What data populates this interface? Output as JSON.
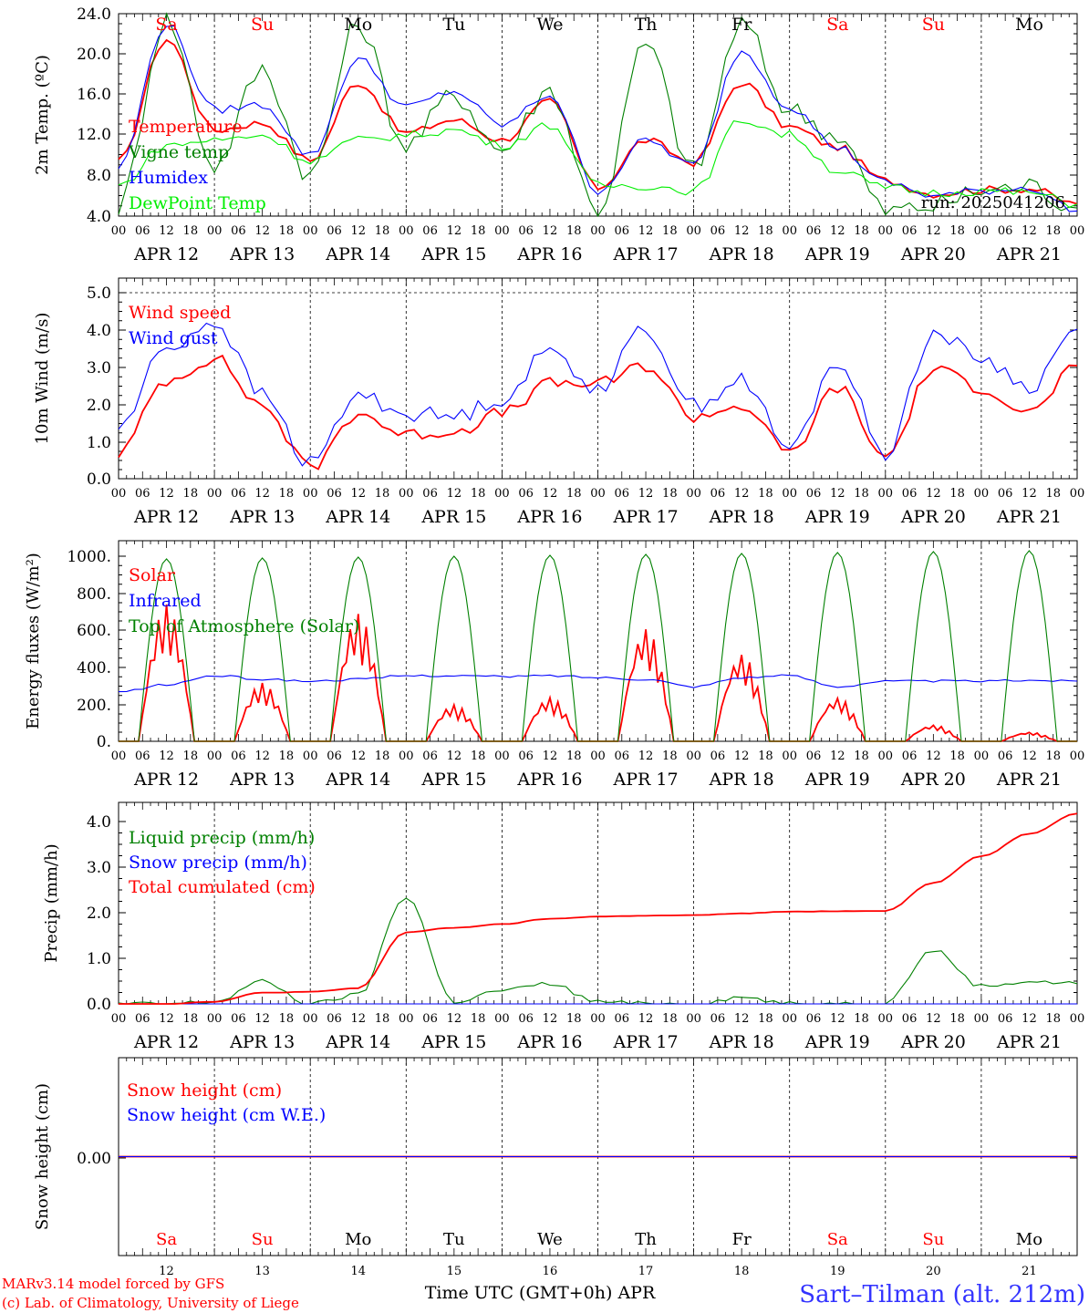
{
  "days": [
    "APR 12",
    "APR 13",
    "APR 14",
    "APR 15",
    "APR 16",
    "APR 17",
    "APR 18",
    "APR 19",
    "APR 20",
    "APR 21"
  ],
  "weekdays": [
    "Sa",
    "Su",
    "Mo",
    "Tu",
    "We",
    "Th",
    "Fr",
    "Sa",
    "Su",
    "Mo"
  ],
  "weekend_color": "#ff0000",
  "weekday_color": "#000000",
  "hour_ticks": [
    "00",
    "06",
    "12",
    "18"
  ],
  "bottom_day_numbers": [
    "12",
    "13",
    "14",
    "15",
    "16",
    "17",
    "18",
    "19",
    "20",
    "21"
  ],
  "footer": {
    "model": "MARv3.14 model forced by GFS",
    "copyright": "(c) Lab. of Climatology, University of Liege",
    "xaxis": "Time UTC (GMT+0h) APR",
    "station": "Sart–Tilman (alt. 212m)"
  },
  "colors": {
    "red": "#ff0000",
    "green": "#008000",
    "blue": "#0000ff",
    "lime": "#00ee00",
    "station": "#3333ff"
  },
  "chart_data": [
    {
      "type": "line",
      "ylabel": "2m Temp. (ºC)",
      "yticks": [
        "24.0",
        "20.0",
        "16.0",
        "12.0",
        "8.0",
        "4.0"
      ],
      "ylim": [
        4,
        24
      ],
      "x": [
        0,
        12,
        24,
        36,
        48,
        60,
        72,
        84,
        96,
        108,
        120,
        132,
        144,
        156,
        168,
        180,
        192,
        204,
        216,
        228,
        240
      ],
      "annotation": "run: 2025041206",
      "series": [
        {
          "name": "Temperature",
          "color": "red",
          "values": [
            9.3,
            21.5,
            12.5,
            13.2,
            9.5,
            17.2,
            12.2,
            13.5,
            11.5,
            15.3,
            6.8,
            11.5,
            9.3,
            17.2,
            12.8,
            10.8,
            7.5,
            6.2,
            6.6,
            6.7,
            5.2
          ]
        },
        {
          "name": "Vigne temp",
          "color": "green",
          "values": [
            5.0,
            23.5,
            9.0,
            18.5,
            8.0,
            23.0,
            11.0,
            16.0,
            10.5,
            16.5,
            4.5,
            21.0,
            8.5,
            23.0,
            14.5,
            12.0,
            4.5,
            5.0,
            6.5,
            7.0,
            4.8
          ]
        },
        {
          "name": "Humidex",
          "color": "blue",
          "values": [
            8.8,
            23.0,
            14.5,
            15.0,
            10.0,
            19.5,
            14.8,
            16.3,
            13.0,
            16.0,
            6.5,
            11.5,
            9.0,
            20.3,
            14.8,
            10.8,
            7.3,
            6.0,
            6.5,
            6.8,
            4.5
          ]
        },
        {
          "name": "DewPoint Temp",
          "color": "lime",
          "values": [
            7.0,
            11.0,
            11.5,
            12.0,
            9.5,
            11.5,
            12.0,
            12.5,
            11.0,
            13.0,
            7.0,
            7.0,
            6.5,
            13.5,
            12.0,
            8.5,
            6.8,
            6.3,
            6.5,
            6.3,
            5.2
          ]
        }
      ]
    },
    {
      "type": "line",
      "ylabel": "10m Wind (m/s)",
      "yticks": [
        "5.0",
        "4.0",
        "3.0",
        "2.0",
        "1.0",
        "0.0"
      ],
      "ylim": [
        0,
        5.5
      ],
      "x": [
        0,
        12,
        24,
        36,
        48,
        60,
        72,
        84,
        96,
        108,
        120,
        132,
        144,
        156,
        168,
        180,
        192,
        204,
        216,
        228,
        240
      ],
      "series": [
        {
          "name": "Wind speed",
          "color": "red",
          "values": [
            0.7,
            2.7,
            3.3,
            2.0,
            0.3,
            1.8,
            1.2,
            1.3,
            1.8,
            2.6,
            2.6,
            3.1,
            1.7,
            2.0,
            0.7,
            2.5,
            0.6,
            3.0,
            2.5,
            1.8,
            3.1
          ]
        },
        {
          "name": "Wind gust",
          "color": "blue",
          "values": [
            1.4,
            3.6,
            4.3,
            2.3,
            0.4,
            2.3,
            1.8,
            1.7,
            2.2,
            3.5,
            2.5,
            4.1,
            2.0,
            2.7,
            0.8,
            3.2,
            0.7,
            4.0,
            3.3,
            2.5,
            4.1
          ]
        }
      ]
    },
    {
      "type": "line",
      "ylabel": "Energy fluxes (W/m²)",
      "yticks": [
        "1000.",
        "800.",
        "600.",
        "400.",
        "200.",
        "0."
      ],
      "ylim": [
        0,
        1100
      ],
      "x": [
        0,
        12,
        24,
        36,
        48,
        60,
        72,
        84,
        96,
        108,
        120,
        132,
        144,
        156,
        168,
        180,
        192,
        204,
        216,
        228,
        240
      ],
      "series": [
        {
          "name": "Solar",
          "color": "red",
          "values": [
            0,
            750,
            0,
            320,
            0,
            700,
            0,
            200,
            0,
            240,
            0,
            620,
            0,
            480,
            0,
            240,
            0,
            90,
            0,
            50,
            0
          ]
        },
        {
          "name": "Infrared",
          "color": "blue",
          "values": [
            270,
            310,
            360,
            340,
            330,
            340,
            360,
            360,
            355,
            360,
            350,
            340,
            300,
            350,
            360,
            300,
            330,
            330,
            330,
            335,
            330
          ]
        },
        {
          "name": "Top of Atmosphere (Solar)",
          "color": "green",
          "values": [
            0,
            1000,
            0,
            1005,
            0,
            1010,
            0,
            1015,
            0,
            1020,
            0,
            1025,
            0,
            1030,
            0,
            1035,
            0,
            1040,
            0,
            1045,
            0
          ]
        }
      ]
    },
    {
      "type": "line",
      "ylabel": "Precip (mm/h)",
      "yticks": [
        "4.0",
        "3.0",
        "2.0",
        "1.0",
        "0.0"
      ],
      "ylim": [
        0,
        4.5
      ],
      "x": [
        0,
        12,
        24,
        36,
        48,
        60,
        72,
        84,
        96,
        108,
        120,
        132,
        144,
        156,
        168,
        180,
        192,
        204,
        216,
        228,
        240
      ],
      "series": [
        {
          "name": "Liquid precip (mm/h)",
          "color": "green",
          "values": [
            0,
            0,
            0.05,
            0.5,
            0,
            0.2,
            2.4,
            0.05,
            0.3,
            0.45,
            0.05,
            0,
            0,
            0.15,
            0,
            0,
            0.05,
            1.2,
            0.4,
            0.5,
            0.45
          ]
        },
        {
          "name": "Snow precip (mm/h)",
          "color": "blue",
          "values": [
            0,
            0,
            0,
            0,
            0,
            0,
            0,
            0,
            0,
            0,
            0,
            0,
            0,
            0,
            0,
            0,
            0,
            0,
            0,
            0,
            0
          ]
        },
        {
          "name": "Total cumulated (cm)",
          "color": "red",
          "values": [
            0,
            0,
            0.05,
            0.25,
            0.27,
            0.35,
            1.6,
            1.7,
            1.78,
            1.9,
            1.95,
            1.97,
            1.98,
            2.02,
            2.06,
            2.07,
            2.08,
            2.7,
            3.3,
            3.8,
            4.25
          ]
        }
      ]
    },
    {
      "type": "line",
      "ylabel": "Snow height (cm)",
      "yticks": [
        "0.00"
      ],
      "ylim": [
        -1,
        1
      ],
      "x": [
        0,
        240
      ],
      "series": [
        {
          "name": "Snow height (cm)",
          "color": "red",
          "values": [
            0,
            0
          ]
        },
        {
          "name": "Snow height (cm W.E.)",
          "color": "blue",
          "values": [
            0,
            0
          ]
        }
      ]
    }
  ]
}
